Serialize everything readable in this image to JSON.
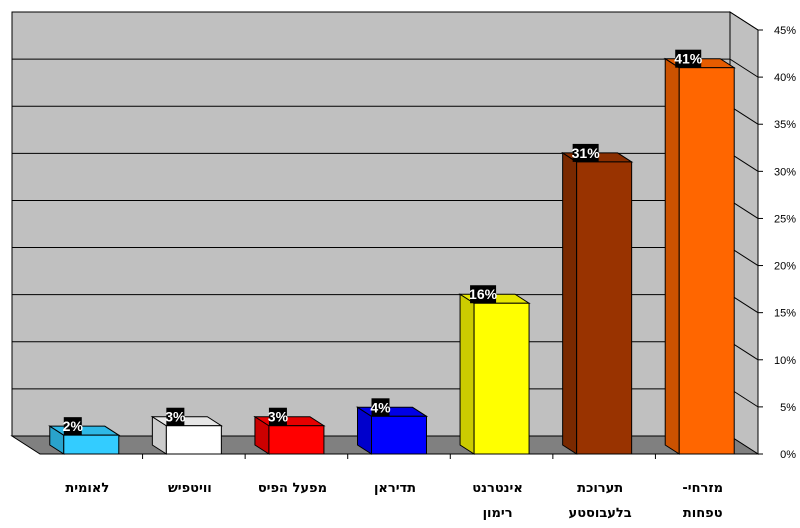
{
  "chart_data": {
    "type": "bar",
    "title": "",
    "xlabel": "",
    "ylabel": "",
    "categories": [
      [
        "לאומית"
      ],
      [
        "וויטפיש"
      ],
      [
        "מפעל הפיס"
      ],
      [
        "תדיראן"
      ],
      [
        "אינטרנט",
        "רימון"
      ],
      [
        "תערוכת",
        "בלעבוסטע"
      ],
      [
        "מזרחי-",
        "טפחות"
      ]
    ],
    "values": [
      2,
      3,
      3,
      4,
      16,
      31,
      41
    ],
    "data_labels": [
      "2%",
      "3%",
      "3%",
      "4%",
      "16%",
      "31%",
      "41%"
    ],
    "colors": [
      "#33ccff",
      "#ffffff",
      "#ff0000",
      "#0000ff",
      "#ffff00",
      "#993300",
      "#ff6600"
    ],
    "ylim": [
      0,
      45
    ],
    "y_ticks": [
      0,
      5,
      10,
      15,
      20,
      25,
      30,
      35,
      40,
      45
    ],
    "y_tick_labels": [
      "0%",
      "5%",
      "10%",
      "15%",
      "20%",
      "25%",
      "30%",
      "35%",
      "40%",
      "45%"
    ],
    "y_axis_side": "right",
    "grid": true,
    "three_d": true,
    "wall_color": "#c0c0c0",
    "floor_color": "#808080"
  }
}
